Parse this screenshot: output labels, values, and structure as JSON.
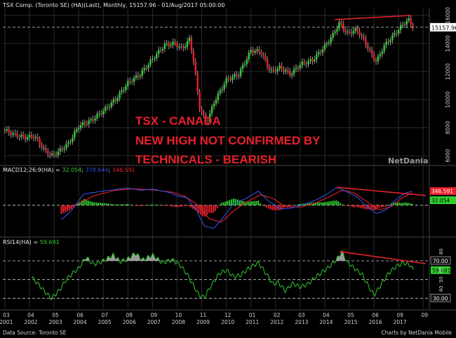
{
  "header": {
    "title": "TSX Comp. (Toronto SE) (HA)(Last), Monthly, 15157.96 - 01/Aug/2017 05:00:00",
    "macd_label": "MACD12;26;9(HA) = ",
    "macd_v1": "32.054",
    "macd_sep": "; ",
    "macd_v2": "378.644",
    "macd_v3": "346.591",
    "rsi_label": "RSI14(HA) = ",
    "rsi_value": "59.691"
  },
  "annotation": {
    "line1": "TSX - CANADA",
    "line2": "NEW HIGH NOT CONFIRMED BY",
    "line3": "TECHNICALS - BEARISH"
  },
  "branding": {
    "logo_text": "NetDania"
  },
  "footer": {
    "source": "Data Source: Toronto SE",
    "credit": "Charts by NetDania Mobile"
  },
  "colors": {
    "up": "#2fd12f",
    "down": "#e8202a",
    "macd_line": "#3050e0",
    "signal_line": "#e8202a",
    "rsi_line": "#2fb52f",
    "trend_line": "#e8202a"
  },
  "chart_data": [
    {
      "type": "candlestick",
      "title": "TSX Comp. (Toronto SE) (HA)(Last), Monthly",
      "ylim": [
        5500,
        16400
      ],
      "yticks": [
        "6000",
        "8000",
        "10000",
        "12000",
        "14000",
        "16000"
      ],
      "last_value_label": "15157.96",
      "last_value": 15157.96,
      "x_start": 2001.0,
      "x_end": 2017.6,
      "anchors": [
        [
          2001.0,
          7800
        ],
        [
          2001.4,
          7500
        ],
        [
          2001.8,
          7300
        ],
        [
          2002.2,
          7400
        ],
        [
          2002.6,
          6400
        ],
        [
          2002.9,
          6000
        ],
        [
          2003.2,
          6300
        ],
        [
          2003.6,
          6900
        ],
        [
          2004.0,
          8100
        ],
        [
          2004.5,
          8500
        ],
        [
          2005.0,
          9200
        ],
        [
          2005.5,
          10000
        ],
        [
          2006.0,
          11200
        ],
        [
          2006.5,
          11800
        ],
        [
          2007.0,
          12900
        ],
        [
          2007.5,
          13900
        ],
        [
          2007.9,
          14000
        ],
        [
          2008.2,
          13600
        ],
        [
          2008.5,
          14300
        ],
        [
          2008.7,
          12500
        ],
        [
          2008.9,
          9500
        ],
        [
          2009.2,
          8300
        ],
        [
          2009.5,
          9800
        ],
        [
          2010.0,
          11400
        ],
        [
          2010.5,
          11800
        ],
        [
          2011.0,
          13500
        ],
        [
          2011.4,
          13400
        ],
        [
          2011.8,
          12000
        ],
        [
          2012.2,
          12300
        ],
        [
          2012.6,
          11800
        ],
        [
          2013.0,
          12500
        ],
        [
          2013.5,
          12800
        ],
        [
          2014.0,
          13800
        ],
        [
          2014.3,
          14500
        ],
        [
          2014.6,
          15500
        ],
        [
          2014.9,
          14700
        ],
        [
          2015.3,
          15000
        ],
        [
          2015.6,
          14200
        ],
        [
          2015.9,
          13200
        ],
        [
          2016.1,
          12700
        ],
        [
          2016.4,
          13800
        ],
        [
          2016.8,
          14600
        ],
        [
          2017.2,
          15400
        ],
        [
          2017.4,
          15700
        ],
        [
          2017.6,
          15160
        ]
      ],
      "trend_line": [
        [
          2014.4,
          15700
        ],
        [
          2017.5,
          16000
        ]
      ],
      "dashed_levels": [
        15157.96
      ]
    },
    {
      "type": "line",
      "title": "MACD12;26;9(HA)",
      "series": [
        {
          "name": "MACD",
          "value": 378.644
        },
        {
          "name": "Signal",
          "value": 346.591
        },
        {
          "name": "Histogram",
          "value": 32.054
        }
      ],
      "value_labels": [
        "346.591",
        "32.054"
      ],
      "ylim": [
        -700,
        800
      ],
      "anchors_macd": [
        [
          2003.3,
          -380
        ],
        [
          2003.7,
          -150
        ],
        [
          2004.2,
          300
        ],
        [
          2005.0,
          380
        ],
        [
          2006.0,
          460
        ],
        [
          2006.5,
          400
        ],
        [
          2007.0,
          430
        ],
        [
          2007.7,
          340
        ],
        [
          2008.0,
          250
        ],
        [
          2008.4,
          200
        ],
        [
          2008.8,
          -150
        ],
        [
          2009.1,
          -560
        ],
        [
          2009.5,
          -620
        ],
        [
          2009.9,
          -300
        ],
        [
          2010.3,
          50
        ],
        [
          2010.8,
          180
        ],
        [
          2011.3,
          380
        ],
        [
          2011.7,
          120
        ],
        [
          2012.2,
          -100
        ],
        [
          2012.6,
          -80
        ],
        [
          2013.0,
          -10
        ],
        [
          2013.5,
          100
        ],
        [
          2014.0,
          260
        ],
        [
          2014.5,
          480
        ],
        [
          2014.9,
          360
        ],
        [
          2015.3,
          230
        ],
        [
          2015.7,
          -20
        ],
        [
          2016.1,
          -230
        ],
        [
          2016.5,
          -120
        ],
        [
          2016.9,
          160
        ],
        [
          2017.3,
          330
        ],
        [
          2017.6,
          380
        ]
      ],
      "anchors_signal": [
        [
          2003.3,
          -120
        ],
        [
          2004.0,
          50
        ],
        [
          2004.6,
          250
        ],
        [
          2005.5,
          400
        ],
        [
          2006.2,
          440
        ],
        [
          2007.0,
          410
        ],
        [
          2007.8,
          350
        ],
        [
          2008.3,
          240
        ],
        [
          2008.8,
          30
        ],
        [
          2009.3,
          -360
        ],
        [
          2009.8,
          -450
        ],
        [
          2010.3,
          -150
        ],
        [
          2010.8,
          80
        ],
        [
          2011.4,
          280
        ],
        [
          2011.9,
          180
        ],
        [
          2012.4,
          -40
        ],
        [
          2013.0,
          -50
        ],
        [
          2013.6,
          50
        ],
        [
          2014.2,
          230
        ],
        [
          2014.7,
          400
        ],
        [
          2015.2,
          330
        ],
        [
          2015.7,
          100
        ],
        [
          2016.2,
          -130
        ],
        [
          2016.7,
          -40
        ],
        [
          2017.1,
          180
        ],
        [
          2017.6,
          347
        ]
      ],
      "trend_line": [
        [
          2014.5,
          480
        ],
        [
          2018.1,
          260
        ]
      ]
    },
    {
      "type": "line",
      "title": "RSI14(HA)",
      "series": [
        {
          "name": "RSI14",
          "value": 59.691
        }
      ],
      "ylim": [
        25,
        85
      ],
      "yticks": [
        "30.00",
        "40",
        "50",
        "60",
        "70.00",
        "80"
      ],
      "reference_levels": [
        30,
        50,
        70
      ],
      "value_label": "59.691",
      "anchors": [
        [
          2002.1,
          52
        ],
        [
          2002.4,
          44
        ],
        [
          2002.7,
          35
        ],
        [
          2002.9,
          30
        ],
        [
          2003.2,
          38
        ],
        [
          2003.5,
          50
        ],
        [
          2003.8,
          58
        ],
        [
          2004.0,
          62
        ],
        [
          2004.3,
          74
        ],
        [
          2004.6,
          66
        ],
        [
          2005.0,
          70
        ],
        [
          2005.4,
          76
        ],
        [
          2005.7,
          69
        ],
        [
          2006.0,
          72
        ],
        [
          2006.3,
          78
        ],
        [
          2006.6,
          71
        ],
        [
          2007.0,
          76
        ],
        [
          2007.4,
          68
        ],
        [
          2007.8,
          71
        ],
        [
          2008.1,
          66
        ],
        [
          2008.4,
          56
        ],
        [
          2008.7,
          42
        ],
        [
          2008.9,
          33
        ],
        [
          2009.1,
          31
        ],
        [
          2009.4,
          44
        ],
        [
          2009.7,
          56
        ],
        [
          2010.0,
          60
        ],
        [
          2010.3,
          53
        ],
        [
          2010.6,
          55
        ],
        [
          2010.9,
          62
        ],
        [
          2011.3,
          68
        ],
        [
          2011.6,
          57
        ],
        [
          2011.9,
          45
        ],
        [
          2012.1,
          47
        ],
        [
          2012.4,
          38
        ],
        [
          2012.7,
          46
        ],
        [
          2013.0,
          42
        ],
        [
          2013.3,
          45
        ],
        [
          2013.6,
          52
        ],
        [
          2013.9,
          58
        ],
        [
          2014.2,
          64
        ],
        [
          2014.5,
          72
        ],
        [
          2014.7,
          80
        ],
        [
          2014.9,
          69
        ],
        [
          2015.2,
          62
        ],
        [
          2015.5,
          56
        ],
        [
          2015.8,
          42
        ],
        [
          2016.0,
          33
        ],
        [
          2016.3,
          45
        ],
        [
          2016.6,
          57
        ],
        [
          2016.9,
          64
        ],
        [
          2017.2,
          68
        ],
        [
          2017.5,
          65
        ],
        [
          2017.6,
          59.7
        ]
      ],
      "trend_line": [
        [
          2014.6,
          80
        ],
        [
          2018.1,
          67
        ]
      ]
    }
  ],
  "x_axis": {
    "months": [
      "03",
      "04",
      "05",
      "06",
      "07",
      "08",
      "09",
      "10",
      "11",
      "12",
      "01",
      "02",
      "03",
      "04",
      "05",
      "06",
      "09"
    ],
    "years": [
      "2001",
      "2002",
      "2003",
      "2004",
      "2005",
      "2006",
      "2007",
      "2008",
      "2009",
      "2010",
      "2011",
      "2012",
      "2013",
      "2014",
      "2015",
      "2016",
      "2017"
    ]
  }
}
